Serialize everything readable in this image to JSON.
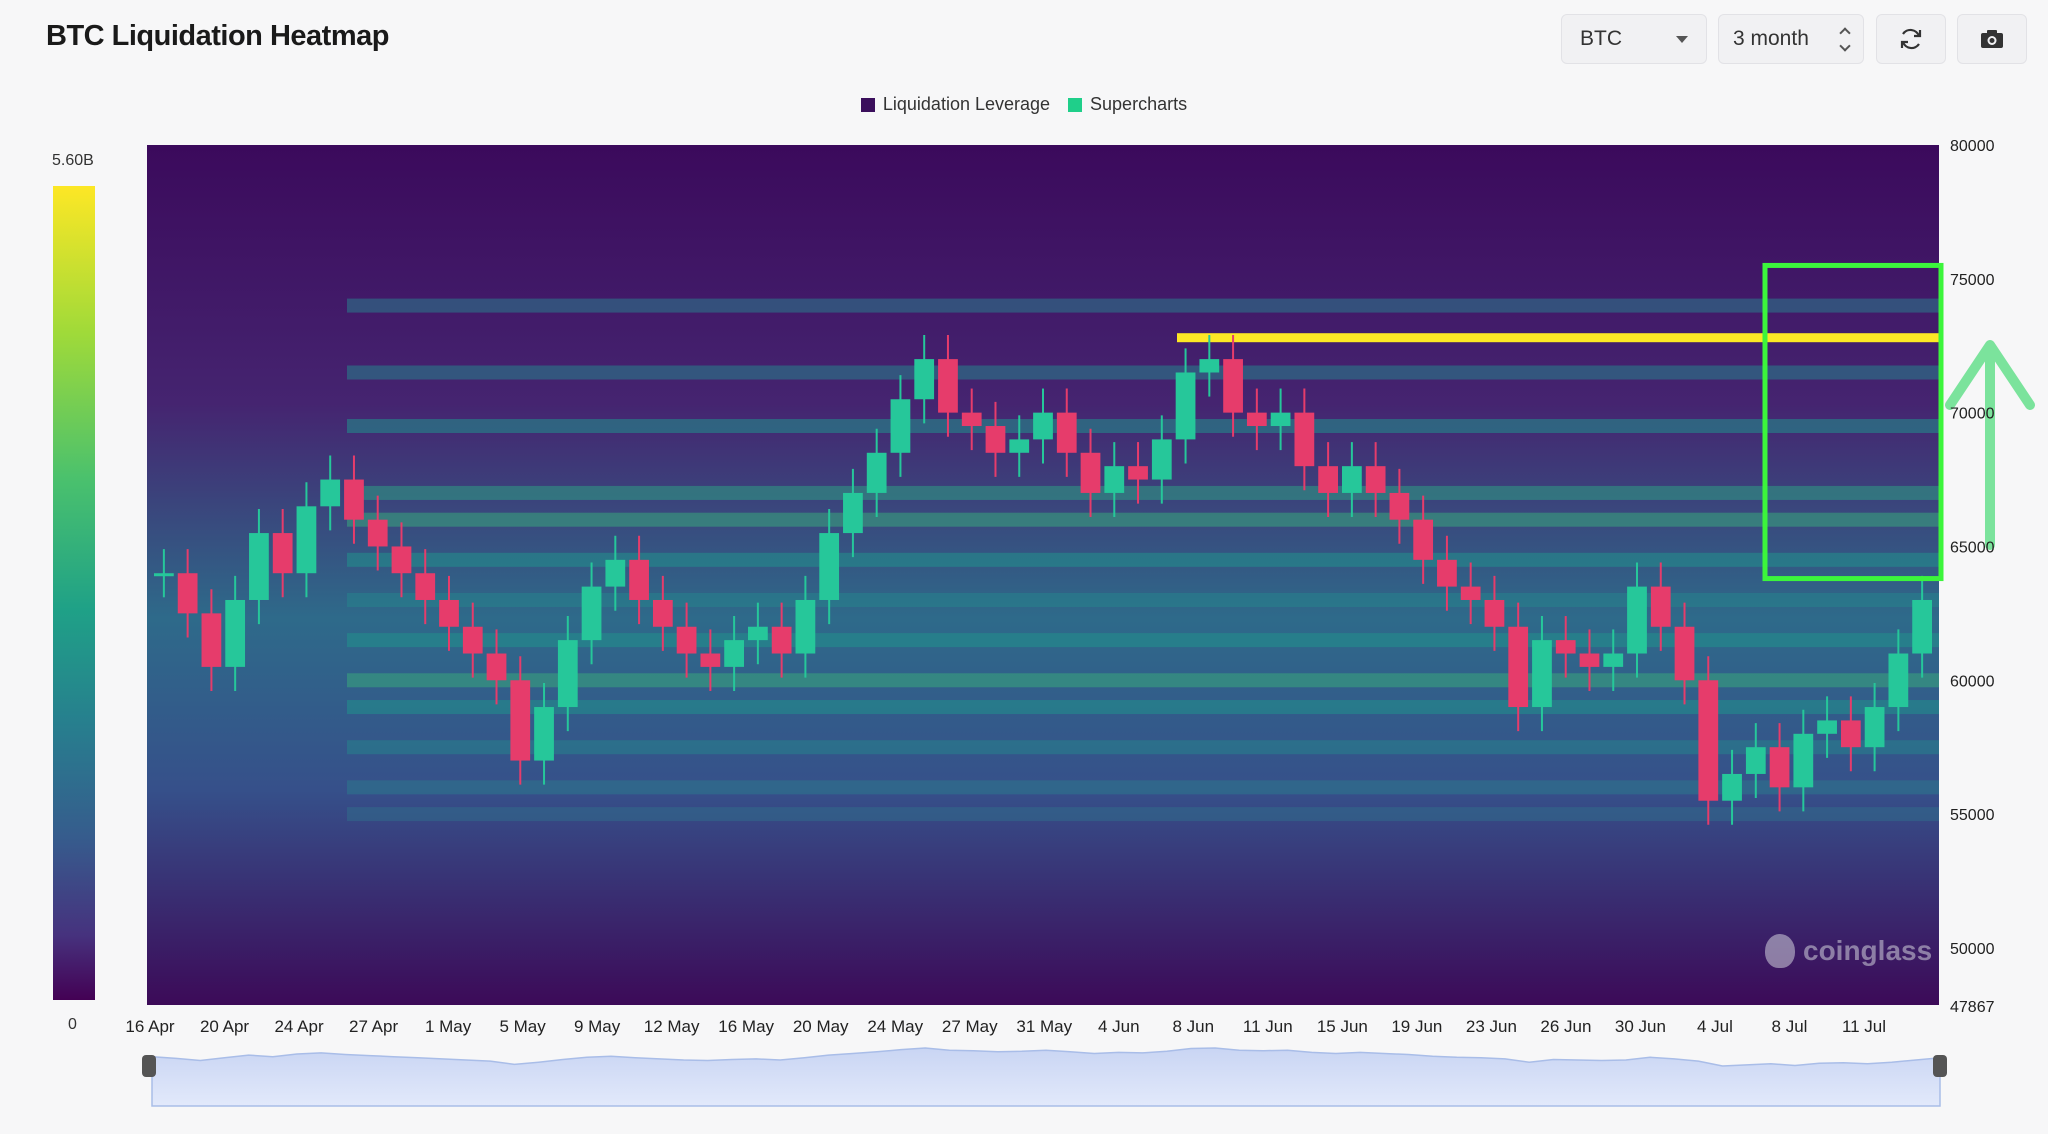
{
  "header": {
    "title": "BTC Liquidation Heatmap",
    "coin_select": "BTC",
    "range_select": "3 month"
  },
  "legend": [
    {
      "label": "Liquidation Leverage",
      "color": "#3b0f5c"
    },
    {
      "label": "Supercharts",
      "color": "#1fcf8a"
    }
  ],
  "colorbar": {
    "max_label": "5.60B",
    "min_label": "0"
  },
  "watermark": "coinglass",
  "chart_data": {
    "type": "heatmap",
    "title": "BTC Liquidation Heatmap",
    "x_tick_labels": [
      "16 Apr",
      "20 Apr",
      "24 Apr",
      "27 Apr",
      "1 May",
      "5 May",
      "9 May",
      "12 May",
      "16 May",
      "20 May",
      "24 May",
      "27 May",
      "31 May",
      "4 Jun",
      "8 Jun",
      "11 Jun",
      "15 Jun",
      "19 Jun",
      "23 Jun",
      "26 Jun",
      "30 Jun",
      "4 Jul",
      "8 Jul",
      "11 Jul"
    ],
    "y_tick_labels": [
      "80000",
      "75000",
      "70000",
      "65000",
      "60000",
      "55000",
      "50000"
    ],
    "y_bottom_label": "47867",
    "ylim": [
      47867,
      80000
    ],
    "price_series": [
      64000,
      62500,
      60500,
      63000,
      65500,
      64000,
      66500,
      67500,
      66000,
      65000,
      64000,
      63000,
      62000,
      61000,
      60000,
      57000,
      59000,
      61500,
      63500,
      64500,
      63000,
      62000,
      61000,
      60500,
      61500,
      62000,
      61000,
      63000,
      65500,
      67000,
      68500,
      70500,
      72000,
      70000,
      69500,
      68500,
      69000,
      70000,
      68500,
      67000,
      68000,
      67500,
      69000,
      71500,
      72000,
      70000,
      69500,
      70000,
      68000,
      67000,
      68000,
      67000,
      66000,
      64500,
      63500,
      63000,
      62000,
      59000,
      61500,
      61000,
      60500,
      61000,
      63500,
      62000,
      60000,
      55500,
      56500,
      57500,
      56000,
      58000,
      58500,
      57500,
      59000,
      61000,
      63000
    ],
    "liquidation_bands": [
      {
        "price": 72800,
        "intensity": 1.0
      },
      {
        "price": 74000,
        "intensity": 0.42
      },
      {
        "price": 71500,
        "intensity": 0.45
      },
      {
        "price": 69500,
        "intensity": 0.5
      },
      {
        "price": 67000,
        "intensity": 0.55
      },
      {
        "price": 66000,
        "intensity": 0.6
      },
      {
        "price": 64500,
        "intensity": 0.5
      },
      {
        "price": 63000,
        "intensity": 0.45
      },
      {
        "price": 61500,
        "intensity": 0.5
      },
      {
        "price": 60000,
        "intensity": 0.6
      },
      {
        "price": 59000,
        "intensity": 0.5
      },
      {
        "price": 57500,
        "intensity": 0.45
      },
      {
        "price": 56000,
        "intensity": 0.4
      },
      {
        "price": 55000,
        "intensity": 0.35
      }
    ],
    "highlight_range": [
      63800,
      75500
    ],
    "colorbar_range": [
      "0",
      "5.60B"
    ]
  }
}
